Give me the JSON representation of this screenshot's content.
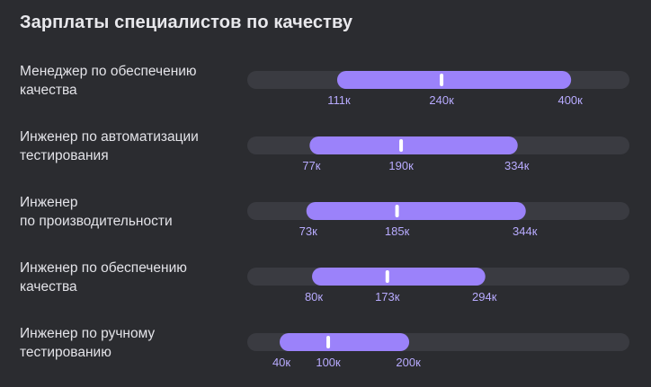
{
  "title": "Зарплаты специалистов по качеству",
  "colors": {
    "background": "#2b2c30",
    "track": "#3a3b41",
    "range": "#9b82fa",
    "median": "#ffffff",
    "tick_text": "#b8abff"
  },
  "chart_data": {
    "type": "bar",
    "subtype": "range",
    "title": "Зарплаты специалистов по качеству",
    "unit_suffix": "к",
    "x_range": [
      0,
      472
    ],
    "rows": [
      {
        "label": "Менеджер по обеспечению\nкачества",
        "min": 111,
        "median": 240,
        "max": 400,
        "min_label": "111к",
        "median_label": "240к",
        "max_label": "400к"
      },
      {
        "label": "Инженер по автоматизации\nтестирования",
        "min": 77,
        "median": 190,
        "max": 334,
        "min_label": "77к",
        "median_label": "190к",
        "max_label": "334к"
      },
      {
        "label": "Инженер\nпо производительности",
        "min": 73,
        "median": 185,
        "max": 344,
        "min_label": "73к",
        "median_label": "185к",
        "max_label": "344к"
      },
      {
        "label": "Инженер по обеспечению\nкачества",
        "min": 80,
        "median": 173,
        "max": 294,
        "min_label": "80к",
        "median_label": "173к",
        "max_label": "294к"
      },
      {
        "label": "Инженер по ручному\nтестированию",
        "min": 40,
        "median": 100,
        "max": 200,
        "min_label": "40к",
        "median_label": "100к",
        "max_label": "200к"
      }
    ]
  }
}
